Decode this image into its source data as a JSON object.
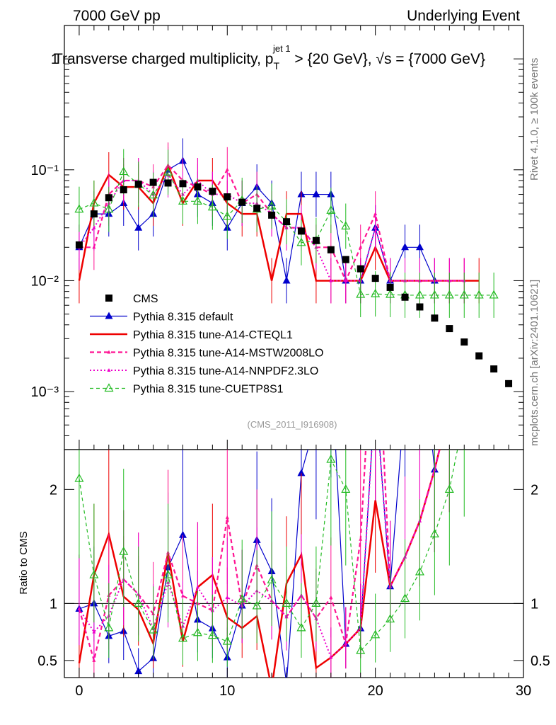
{
  "header": {
    "left": "7000 GeV pp",
    "right": "Underlying Event",
    "title": "Transverse charged multiplicity, p",
    "title_sub": "T",
    "title_sup": "jet 1",
    "title_rest": " > {20 GeV}, √s = {7000 GeV}"
  },
  "side": {
    "rivet": "Rivet 4.1.0, ≥ 100k events",
    "mcplots": "mcplots.cern.ch [arXiv:2401.10621]"
  },
  "watermark": "(CMS_2011_I916908)",
  "ratio_ylabel": "Ratio to CMS",
  "colors": {
    "cms": "#000000",
    "default": "#0000cc",
    "cteql1": "#ee0000",
    "mstw": "#ff1493",
    "nnpdf": "#ee00cc",
    "cuetp8s1": "#22bb22"
  },
  "legend": [
    {
      "label": "CMS",
      "key": "cms"
    },
    {
      "label": "Pythia 8.315 default",
      "key": "default"
    },
    {
      "label": "Pythia 8.315 tune-A14-CTEQL1",
      "key": "cteql1"
    },
    {
      "label": "Pythia 8.315 tune-A14-MSTW2008LO",
      "key": "mstw"
    },
    {
      "label": "Pythia 8.315 tune-A14-NNPDF2.3LO",
      "key": "nnpdf"
    },
    {
      "label": "Pythia 8.315 tune-CUETP8S1",
      "key": "cuetp8s1"
    }
  ],
  "chart_data": {
    "type": "line",
    "xlim": [
      -1,
      30
    ],
    "main_ylim": [
      0.0003,
      2
    ],
    "main_yscale": "log",
    "ratio_ylim": [
      0.35,
      2.35
    ],
    "x_ticks": [
      "0",
      "10",
      "20",
      "30"
    ],
    "main_y_ticks": [
      {
        "label": "1",
        "v": 1
      },
      {
        "label": "10⁻¹",
        "v": 0.1
      },
      {
        "label": "10⁻²",
        "v": 0.01
      },
      {
        "label": "10⁻³",
        "v": 0.001
      }
    ],
    "ratio_y_ticks": [
      "0.5",
      "1",
      "2"
    ],
    "cms": {
      "x": [
        0,
        1,
        2,
        3,
        4,
        5,
        6,
        7,
        8,
        9,
        10,
        11,
        12,
        13,
        14,
        15,
        16,
        17,
        18,
        19,
        20,
        21,
        22,
        23,
        24,
        25,
        26,
        27,
        28,
        29
      ],
      "y": [
        0.021,
        0.04,
        0.056,
        0.066,
        0.074,
        0.077,
        0.076,
        0.075,
        0.07,
        0.064,
        0.057,
        0.051,
        0.045,
        0.039,
        0.034,
        0.028,
        0.023,
        0.019,
        0.0155,
        0.0128,
        0.0105,
        0.0087,
        0.0071,
        0.0058,
        0.0046,
        0.0037,
        0.0028,
        0.0021,
        0.0016,
        0.00118
      ]
    },
    "series": [
      {
        "name": "Pythia 8.315 default",
        "key": "default",
        "x": [
          0,
          1,
          2,
          3,
          4,
          5,
          6,
          7,
          8,
          9,
          10,
          11,
          12,
          13,
          14,
          15,
          16,
          17,
          18,
          19,
          20,
          21,
          22,
          23,
          24
        ],
        "y": [
          0.02,
          0.04,
          0.04,
          0.05,
          0.03,
          0.04,
          0.1,
          0.12,
          0.06,
          0.05,
          0.03,
          0.05,
          0.07,
          0.05,
          0.01,
          0.06,
          0.06,
          0.06,
          0.01,
          0.01,
          0.03,
          0.01,
          0.02,
          0.02,
          0.01
        ]
      },
      {
        "name": "Pythia 8.315 tune-A14-CTEQL1",
        "key": "cteql1",
        "x": [
          0,
          1,
          2,
          3,
          4,
          5,
          6,
          7,
          8,
          9,
          10,
          11,
          12,
          13,
          14,
          15,
          16,
          17,
          18,
          19,
          20,
          21,
          22,
          23,
          24,
          25,
          26,
          27
        ],
        "y": [
          0.01,
          0.05,
          0.09,
          0.07,
          0.07,
          0.05,
          0.11,
          0.05,
          0.08,
          0.08,
          0.05,
          0.04,
          0.04,
          0.01,
          0.04,
          0.04,
          0.01,
          0.01,
          0.01,
          0.01,
          0.02,
          0.01,
          0.01,
          0.01,
          0.01,
          0.01,
          0.01,
          0.01
        ]
      },
      {
        "name": "Pythia 8.315 tune-A14-MSTW2008LO",
        "key": "mstw",
        "x": [
          0,
          1,
          2,
          3,
          4,
          5,
          6,
          7,
          8,
          9,
          10,
          11,
          12,
          13,
          14,
          15,
          16,
          17,
          18,
          19,
          20,
          21,
          22,
          23,
          24,
          25,
          26
        ],
        "y": [
          0.02,
          0.02,
          0.06,
          0.08,
          0.08,
          0.07,
          0.11,
          0.08,
          0.07,
          0.06,
          0.1,
          0.05,
          0.06,
          0.04,
          0.03,
          0.03,
          0.02,
          0.02,
          0.01,
          0.02,
          0.04,
          0.01,
          0.01,
          0.01,
          0.01,
          0.01,
          0.01
        ]
      },
      {
        "name": "Pythia 8.315 tune-A14-NNPDF2.3LO",
        "key": "nnpdf",
        "x": [
          0,
          1,
          2,
          3,
          4,
          5,
          6,
          7,
          8,
          9,
          10,
          11,
          12,
          13,
          14,
          15,
          16,
          17,
          18,
          19,
          20,
          21,
          22,
          23,
          24,
          25,
          26
        ],
        "y": [
          0.02,
          0.03,
          0.05,
          0.08,
          0.08,
          0.06,
          0.09,
          0.06,
          0.08,
          0.06,
          0.06,
          0.05,
          0.05,
          0.04,
          0.03,
          0.03,
          0.02,
          0.01,
          0.01,
          0.01,
          0.03,
          0.01,
          0.01,
          0.01,
          0.01,
          0.01,
          0.01
        ]
      },
      {
        "name": "Pythia 8.315 tune-CUETP8S1",
        "key": "cuetp8s1",
        "x": [
          0,
          1,
          2,
          3,
          4,
          5,
          6,
          7,
          8,
          9,
          10,
          11,
          12,
          13,
          14,
          15,
          16,
          17,
          18,
          19,
          20,
          21,
          22,
          23,
          24,
          25,
          26,
          27,
          28
        ],
        "y": [
          0.044,
          0.05,
          0.044,
          0.096,
          0.074,
          0.059,
          0.095,
          0.052,
          0.052,
          0.046,
          0.038,
          0.053,
          0.044,
          0.047,
          0.034,
          0.022,
          0.023,
          0.043,
          0.031,
          0.0075,
          0.0076,
          0.0075,
          0.0074,
          0.0074,
          0.0074,
          0.0074,
          0.0074,
          0.0074,
          0.0074
        ]
      }
    ]
  }
}
